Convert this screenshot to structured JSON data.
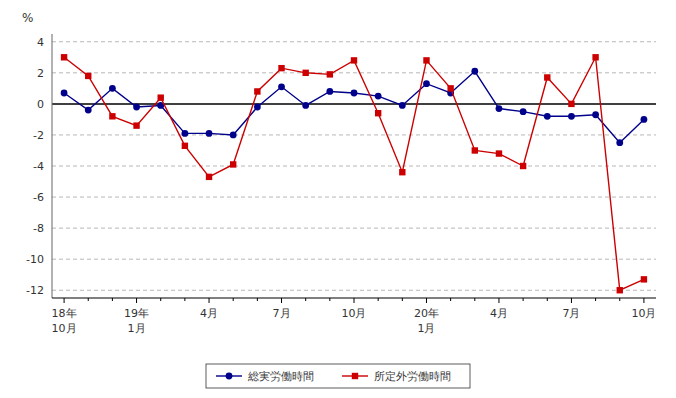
{
  "chart_data": {
    "type": "line",
    "y_label": "%",
    "categories": [
      "18年\n10月",
      null,
      null,
      "19年\n1月",
      null,
      null,
      "4月",
      null,
      null,
      "7月",
      null,
      null,
      "10月",
      null,
      null,
      "20年\n1月",
      null,
      null,
      "4月",
      null,
      null,
      "7月",
      null,
      null,
      "10月"
    ],
    "series": [
      {
        "name": "総実労働時間",
        "color": "#00008B",
        "marker": "circle",
        "line_style": "solid",
        "values": [
          0.7,
          -0.4,
          1.0,
          -0.2,
          -0.1,
          -1.9,
          -1.9,
          -2.0,
          -0.2,
          1.1,
          -0.1,
          0.8,
          0.7,
          0.5,
          -0.1,
          1.3,
          0.7,
          2.1,
          -0.3,
          -0.5,
          -0.8,
          -0.8,
          -0.7,
          -2.5,
          -1.0
        ]
      },
      {
        "name": "所定外労働時間",
        "color": "#CC0000",
        "marker": "square",
        "line_style": "solid",
        "values": [
          3.0,
          1.8,
          -0.8,
          -1.4,
          0.4,
          -2.7,
          -4.7,
          -3.9,
          0.8,
          2.3,
          2.0,
          1.9,
          2.8,
          -0.6,
          -4.4,
          2.8,
          1.0,
          -3.0,
          -3.2,
          -4.0,
          1.7,
          0.0,
          3.0,
          -12.0,
          -11.3
        ]
      }
    ],
    "ylim": [
      -12.5,
      4.5
    ],
    "yticks": [
      -12,
      -10,
      -8,
      -6,
      -4,
      -2,
      0,
      2,
      4
    ],
    "grid": true,
    "legend": "bottom"
  }
}
